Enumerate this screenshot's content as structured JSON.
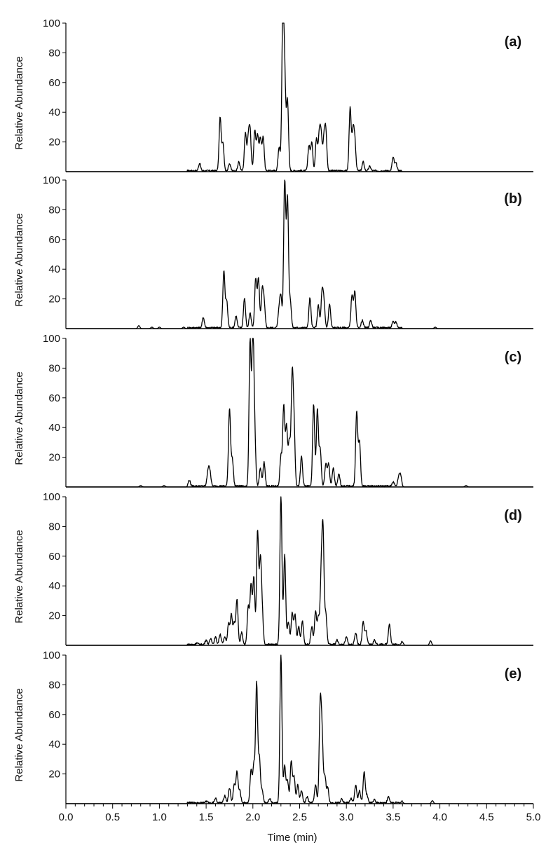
{
  "x_axis": {
    "label": "Time (min)",
    "range": [
      0.0,
      5.0
    ],
    "major_ticks": [
      0.0,
      0.5,
      1.0,
      1.5,
      2.0,
      2.5,
      3.0,
      3.5,
      4.0,
      4.5,
      5.0
    ],
    "tick_labels": [
      "0.0",
      "0.5",
      "1.0",
      "1.5",
      "2.0",
      "2.5",
      "3.0",
      "3.5",
      "4.0",
      "4.5",
      "5.0"
    ],
    "minor_tick_step": 0.1
  },
  "y_axis": {
    "label": "Relative Abundance",
    "range": [
      0,
      100
    ],
    "tick_values": [
      20,
      40,
      60,
      80,
      100
    ],
    "tick_labels": [
      "20",
      "40",
      "60",
      "80",
      "100"
    ]
  },
  "line_color": "#000000",
  "chart_data": [
    {
      "type": "line",
      "panel_label": "(a)",
      "peaks": [
        [
          1.43,
          5
        ],
        [
          1.65,
          36
        ],
        [
          1.68,
          18
        ],
        [
          1.75,
          5
        ],
        [
          1.85,
          6
        ],
        [
          1.92,
          25
        ],
        [
          1.95,
          20
        ],
        [
          1.97,
          26
        ],
        [
          2.02,
          27
        ],
        [
          2.05,
          24
        ],
        [
          2.08,
          22
        ],
        [
          2.11,
          23
        ],
        [
          2.28,
          16
        ],
        [
          2.32,
          100
        ],
        [
          2.34,
          60
        ],
        [
          2.37,
          48
        ],
        [
          2.6,
          17
        ],
        [
          2.63,
          19
        ],
        [
          2.68,
          22
        ],
        [
          2.71,
          24
        ],
        [
          2.73,
          23
        ],
        [
          2.76,
          21
        ],
        [
          2.78,
          26
        ],
        [
          3.04,
          42
        ],
        [
          3.07,
          25
        ],
        [
          3.09,
          20
        ],
        [
          3.18,
          6
        ],
        [
          3.25,
          3
        ],
        [
          3.5,
          9
        ],
        [
          3.53,
          5
        ]
      ]
    },
    {
      "type": "line",
      "panel_label": "(b)",
      "peaks": [
        [
          0.78,
          2
        ],
        [
          0.92,
          1
        ],
        [
          1.0,
          1
        ],
        [
          1.26,
          1
        ],
        [
          1.47,
          7
        ],
        [
          1.69,
          38
        ],
        [
          1.72,
          18
        ],
        [
          1.82,
          8
        ],
        [
          1.91,
          20
        ],
        [
          1.97,
          10
        ],
        [
          2.03,
          33
        ],
        [
          2.06,
          33
        ],
        [
          2.1,
          24
        ],
        [
          2.12,
          16
        ],
        [
          2.28,
          12
        ],
        [
          2.3,
          20
        ],
        [
          2.34,
          100
        ],
        [
          2.37,
          87
        ],
        [
          2.4,
          18
        ],
        [
          2.61,
          20
        ],
        [
          2.7,
          15
        ],
        [
          2.74,
          23
        ],
        [
          2.76,
          16
        ],
        [
          2.82,
          16
        ],
        [
          3.06,
          22
        ],
        [
          3.09,
          24
        ],
        [
          3.17,
          5
        ],
        [
          3.26,
          5
        ],
        [
          3.5,
          4
        ],
        [
          3.53,
          4
        ],
        [
          3.95,
          1
        ]
      ]
    },
    {
      "type": "line",
      "panel_label": "(c)",
      "peaks": [
        [
          0.8,
          1
        ],
        [
          1.05,
          1
        ],
        [
          1.32,
          4
        ],
        [
          1.52,
          10
        ],
        [
          1.54,
          10
        ],
        [
          1.75,
          52
        ],
        [
          1.78,
          18
        ],
        [
          1.97,
          97
        ],
        [
          2.0,
          100
        ],
        [
          2.02,
          30
        ],
        [
          2.08,
          12
        ],
        [
          2.12,
          16
        ],
        [
          2.3,
          20
        ],
        [
          2.33,
          54
        ],
        [
          2.36,
          40
        ],
        [
          2.39,
          30
        ],
        [
          2.42,
          71
        ],
        [
          2.44,
          38
        ],
        [
          2.52,
          20
        ],
        [
          2.65,
          55
        ],
        [
          2.69,
          52
        ],
        [
          2.72,
          25
        ],
        [
          2.78,
          15
        ],
        [
          2.81,
          15
        ],
        [
          2.86,
          12
        ],
        [
          2.92,
          8
        ],
        [
          3.11,
          50
        ],
        [
          3.14,
          30
        ],
        [
          3.5,
          3
        ],
        [
          3.56,
          6
        ],
        [
          3.58,
          7
        ],
        [
          4.28,
          1
        ]
      ]
    },
    {
      "type": "line",
      "panel_label": "(d)",
      "peaks": [
        [
          1.4,
          1
        ],
        [
          1.5,
          3
        ],
        [
          1.55,
          4
        ],
        [
          1.6,
          5
        ],
        [
          1.65,
          7
        ],
        [
          1.7,
          5
        ],
        [
          1.74,
          14
        ],
        [
          1.77,
          20
        ],
        [
          1.8,
          14
        ],
        [
          1.83,
          30
        ],
        [
          1.88,
          8
        ],
        [
          1.95,
          25
        ],
        [
          1.98,
          40
        ],
        [
          2.01,
          45
        ],
        [
          2.05,
          76
        ],
        [
          2.08,
          55
        ],
        [
          2.1,
          20
        ],
        [
          2.3,
          100
        ],
        [
          2.34,
          60
        ],
        [
          2.38,
          15
        ],
        [
          2.42,
          21
        ],
        [
          2.45,
          20
        ],
        [
          2.49,
          12
        ],
        [
          2.53,
          16
        ],
        [
          2.63,
          12
        ],
        [
          2.67,
          22
        ],
        [
          2.7,
          18
        ],
        [
          2.73,
          42
        ],
        [
          2.75,
          74
        ],
        [
          2.78,
          20
        ],
        [
          2.9,
          3
        ],
        [
          3.0,
          5
        ],
        [
          3.1,
          8
        ],
        [
          3.18,
          15
        ],
        [
          3.21,
          9
        ],
        [
          3.3,
          3
        ],
        [
          3.46,
          14
        ],
        [
          3.6,
          2
        ],
        [
          3.9,
          3
        ]
      ]
    },
    {
      "type": "line",
      "panel_label": "(e)",
      "peaks": [
        [
          1.5,
          1
        ],
        [
          1.6,
          3
        ],
        [
          1.7,
          5
        ],
        [
          1.75,
          10
        ],
        [
          1.8,
          12
        ],
        [
          1.83,
          21
        ],
        [
          1.86,
          8
        ],
        [
          1.98,
          22
        ],
        [
          2.01,
          25
        ],
        [
          2.04,
          80
        ],
        [
          2.07,
          30
        ],
        [
          2.1,
          8
        ],
        [
          2.18,
          3
        ],
        [
          2.3,
          100
        ],
        [
          2.34,
          25
        ],
        [
          2.37,
          15
        ],
        [
          2.41,
          28
        ],
        [
          2.44,
          18
        ],
        [
          2.48,
          12
        ],
        [
          2.52,
          8
        ],
        [
          2.58,
          4
        ],
        [
          2.67,
          12
        ],
        [
          2.72,
          63
        ],
        [
          2.74,
          42
        ],
        [
          2.77,
          18
        ],
        [
          2.8,
          10
        ],
        [
          2.95,
          3
        ],
        [
          3.05,
          3
        ],
        [
          3.1,
          12
        ],
        [
          3.14,
          8
        ],
        [
          3.19,
          21
        ],
        [
          3.22,
          5
        ],
        [
          3.3,
          2
        ],
        [
          3.45,
          4
        ],
        [
          3.6,
          1
        ],
        [
          3.92,
          2
        ]
      ]
    }
  ]
}
